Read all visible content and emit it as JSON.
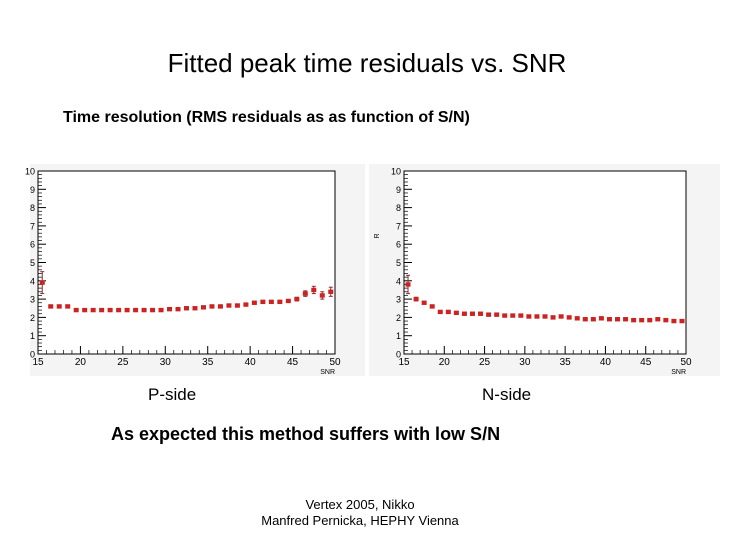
{
  "slide": {
    "title": "Fitted peak time residuals vs. SNR",
    "subtitle": "Time resolution (RMS residuals as as function of S/N)",
    "conclusion": "As expected this method suffers with low S/N",
    "footer_line1": "Vertex 2005, Nikko",
    "footer_line2": "Manfred Pernicka, HEPHY Vienna"
  },
  "colors": {
    "marker": "#cc2222",
    "errorbar": "#8a2a2a",
    "frame": "#000000",
    "panel_bg": "#f4f4f4"
  },
  "chart_data": [
    {
      "type": "scatter",
      "caption": "P-side",
      "xlabel": "SNR",
      "ylabel": "",
      "xlim": [
        15,
        50
      ],
      "ylim": [
        0,
        10
      ],
      "xticks": [
        "15",
        "20",
        "25",
        "30",
        "35",
        "40",
        "45",
        "50"
      ],
      "yticks": [
        "0",
        "1",
        "2",
        "3",
        "4",
        "5",
        "6",
        "7",
        "8",
        "9",
        "10"
      ],
      "x": [
        15.5,
        16.5,
        17.5,
        18.5,
        19.5,
        20.5,
        21.5,
        22.5,
        23.5,
        24.5,
        25.5,
        26.5,
        27.5,
        28.5,
        29.5,
        30.5,
        31.5,
        32.5,
        33.5,
        34.5,
        35.5,
        36.5,
        37.5,
        38.5,
        39.5,
        40.5,
        41.5,
        42.5,
        43.5,
        44.5,
        45.5,
        46.5,
        47.5,
        48.5,
        49.5
      ],
      "y": [
        3.9,
        2.6,
        2.6,
        2.6,
        2.4,
        2.4,
        2.4,
        2.4,
        2.4,
        2.4,
        2.4,
        2.4,
        2.4,
        2.4,
        2.4,
        2.45,
        2.45,
        2.5,
        2.5,
        2.55,
        2.6,
        2.6,
        2.65,
        2.65,
        2.7,
        2.8,
        2.85,
        2.85,
        2.85,
        2.9,
        3.0,
        3.3,
        3.5,
        3.2,
        3.4
      ],
      "yerr": [
        0.6,
        0.05,
        0.05,
        0.05,
        0.04,
        0.04,
        0.04,
        0.04,
        0.04,
        0.04,
        0.04,
        0.04,
        0.04,
        0.04,
        0.04,
        0.04,
        0.04,
        0.04,
        0.04,
        0.04,
        0.05,
        0.05,
        0.05,
        0.05,
        0.05,
        0.06,
        0.06,
        0.06,
        0.06,
        0.08,
        0.1,
        0.15,
        0.2,
        0.2,
        0.25
      ]
    },
    {
      "type": "scatter",
      "caption": "N-side",
      "xlabel": "SNR",
      "ylabel": "R",
      "xlim": [
        15,
        50
      ],
      "ylim": [
        0,
        10
      ],
      "xticks": [
        "15",
        "20",
        "25",
        "30",
        "35",
        "40",
        "45",
        "50"
      ],
      "yticks": [
        "0",
        "1",
        "2",
        "3",
        "4",
        "5",
        "6",
        "7",
        "8",
        "9",
        "10"
      ],
      "x": [
        15.5,
        16.5,
        17.5,
        18.5,
        19.5,
        20.5,
        21.5,
        22.5,
        23.5,
        24.5,
        25.5,
        26.5,
        27.5,
        28.5,
        29.5,
        30.5,
        31.5,
        32.5,
        33.5,
        34.5,
        35.5,
        36.5,
        37.5,
        38.5,
        39.5,
        40.5,
        41.5,
        42.5,
        43.5,
        44.5,
        45.5,
        46.5,
        47.5,
        48.5,
        49.5
      ],
      "y": [
        3.8,
        3.0,
        2.8,
        2.6,
        2.3,
        2.3,
        2.25,
        2.2,
        2.2,
        2.2,
        2.15,
        2.15,
        2.1,
        2.1,
        2.1,
        2.05,
        2.05,
        2.05,
        2.0,
        2.05,
        2.0,
        1.95,
        1.9,
        1.9,
        1.95,
        1.9,
        1.9,
        1.9,
        1.85,
        1.85,
        1.85,
        1.9,
        1.85,
        1.8,
        1.8
      ],
      "yerr": [
        0.5,
        0.1,
        0.06,
        0.05,
        0.04,
        0.04,
        0.04,
        0.04,
        0.04,
        0.04,
        0.04,
        0.04,
        0.04,
        0.04,
        0.04,
        0.04,
        0.04,
        0.04,
        0.04,
        0.04,
        0.04,
        0.04,
        0.04,
        0.04,
        0.04,
        0.04,
        0.04,
        0.04,
        0.04,
        0.04,
        0.04,
        0.04,
        0.04,
        0.04,
        0.04
      ]
    }
  ]
}
